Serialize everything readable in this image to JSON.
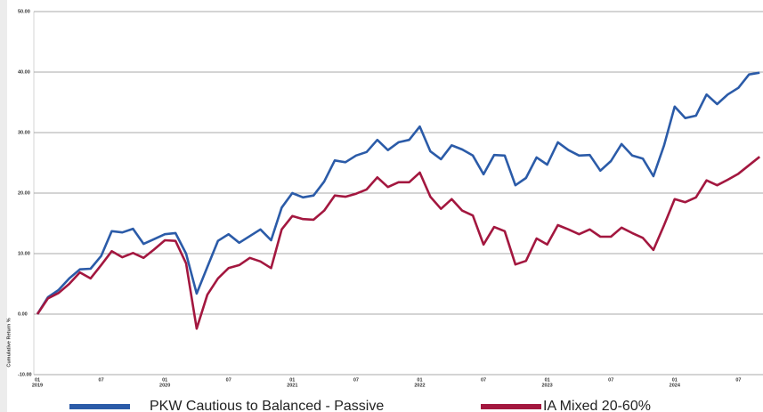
{
  "chart_data": {
    "type": "line",
    "y_axis_label": "Cumulative Return %",
    "categories": [
      "01",
      null,
      null,
      null,
      null,
      null,
      "07",
      null,
      null,
      null,
      null,
      null,
      "01",
      null,
      null,
      null,
      null,
      null,
      "07",
      null,
      null,
      null,
      null,
      null,
      "01",
      null,
      null,
      null,
      null,
      null,
      "07",
      null,
      null,
      null,
      null,
      null,
      "01",
      null,
      null,
      null,
      null,
      null,
      "07",
      null,
      null,
      null,
      null,
      null,
      "01",
      null,
      null,
      null,
      null,
      null,
      "07",
      null,
      null,
      null,
      null,
      null,
      "01",
      null,
      null,
      null,
      null,
      null,
      "07",
      null,
      null
    ],
    "category_years": [
      "2019",
      null,
      null,
      null,
      null,
      null,
      null,
      null,
      null,
      null,
      null,
      null,
      "2020",
      null,
      null,
      null,
      null,
      null,
      null,
      null,
      null,
      null,
      null,
      null,
      "2021",
      null,
      null,
      null,
      null,
      null,
      null,
      null,
      null,
      null,
      null,
      null,
      "2022",
      null,
      null,
      null,
      null,
      null,
      null,
      null,
      null,
      null,
      null,
      null,
      "2023",
      null,
      null,
      null,
      null,
      null,
      null,
      null,
      null,
      null,
      null,
      null,
      "2024",
      null,
      null,
      null,
      null,
      null,
      null,
      null,
      null
    ],
    "series": [
      {
        "name": "PKW Cautious to Balanced - Passive",
        "color": "#2b5ba8",
        "values": [
          0,
          2.8,
          4.0,
          5.9,
          7.4,
          7.5,
          9.6,
          13.7,
          13.5,
          14.1,
          11.6,
          12.4,
          13.2,
          13.4,
          10.0,
          3.4,
          7.8,
          12.1,
          13.2,
          11.8,
          12.9,
          14.0,
          12.2,
          17.6,
          20.0,
          19.3,
          19.6,
          21.9,
          25.4,
          25.1,
          26.2,
          26.8,
          28.8,
          27.1,
          28.4,
          28.8,
          31.0,
          26.9,
          25.6,
          27.9,
          27.2,
          26.2,
          23.1,
          26.3,
          26.2,
          21.3,
          22.5,
          25.9,
          24.7,
          28.4,
          27.1,
          26.2,
          26.3,
          23.7,
          25.3,
          28.1,
          26.2,
          25.7,
          22.8,
          27.9,
          34.3,
          32.4,
          32.8,
          36.3,
          34.7,
          36.3,
          37.4,
          39.6,
          39.9
        ]
      },
      {
        "name": "IA Mixed 20-60%",
        "color": "#a3173f",
        "values": [
          0,
          2.6,
          3.5,
          5.0,
          6.9,
          5.9,
          8.1,
          10.4,
          9.4,
          10.1,
          9.3,
          10.7,
          12.2,
          12.1,
          8.4,
          -2.4,
          3.2,
          5.9,
          7.6,
          8.1,
          9.3,
          8.7,
          7.6,
          14.0,
          16.2,
          15.7,
          15.6,
          17.1,
          19.6,
          19.4,
          19.9,
          20.6,
          22.6,
          21.0,
          21.8,
          21.8,
          23.4,
          19.4,
          17.4,
          19.0,
          17.1,
          16.3,
          11.5,
          14.4,
          13.7,
          8.2,
          8.8,
          12.5,
          11.5,
          14.7,
          14.0,
          13.2,
          14.0,
          12.8,
          12.8,
          14.3,
          13.4,
          12.6,
          10.6,
          14.7,
          19.0,
          18.5,
          19.3,
          22.1,
          21.3,
          22.2,
          23.2,
          24.6,
          26.0
        ]
      }
    ],
    "ylim": [
      -10,
      50
    ],
    "yticks": [
      {
        "value": -10,
        "label": "-10.00"
      },
      {
        "value": 0,
        "label": "0.00"
      },
      {
        "value": 10,
        "label": "10.00"
      },
      {
        "value": 20,
        "label": "20.00"
      },
      {
        "value": 30,
        "label": "30.00"
      },
      {
        "value": 40,
        "label": "40.00"
      },
      {
        "value": 50,
        "label": "50.00"
      }
    ],
    "grid": true,
    "legend": "bottom"
  }
}
